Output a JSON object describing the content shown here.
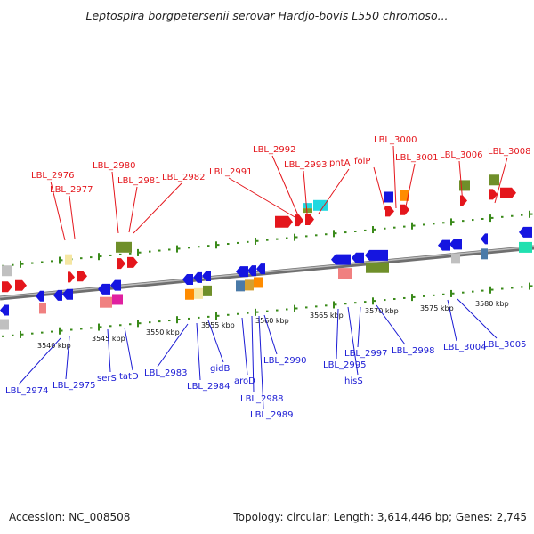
{
  "title": "Leptospira borgpetersenii serovar Hardjo-bovis L550 chromoso...",
  "accession": "Accession: NC_008508",
  "summary": "Topology: circular; Length: 3,614,446 bp; Genes: 2,745",
  "colors": {
    "forward_label": "#e4161c",
    "reverse_label": "#1b1bd4",
    "backbone": "#8a8a8a",
    "dots": "#3a8a1a"
  },
  "ticks": [
    {
      "label": "3540 kbp"
    },
    {
      "label": "3545 kbp"
    },
    {
      "label": "3550 kbp"
    },
    {
      "label": "3555 kbp"
    },
    {
      "label": "3560 kbp"
    },
    {
      "label": "3565 kbp"
    },
    {
      "label": "3570 kbp"
    },
    {
      "label": "3575 kbp"
    },
    {
      "label": "3580 kbp"
    }
  ],
  "forward_labels": [
    "LBL_2976",
    "LBL_2977",
    "LBL_2980",
    "LBL_2981",
    "LBL_2982",
    "LBL_2991",
    "LBL_2992",
    "LBL_2993",
    "pntA",
    "folP",
    "LBL_3000",
    "LBL_3001",
    "LBL_3006",
    "LBL_3008"
  ],
  "reverse_labels": [
    "LBL_2974",
    "LBL_2975",
    "serS",
    "tatD",
    "LBL_2983",
    "LBL_2984",
    "gidB",
    "aroD",
    "LBL_2988",
    "LBL_2989",
    "LBL_2990",
    "LBL_2995",
    "hisS",
    "LBL_2997",
    "LBL_2998",
    "LBL_3004",
    "LBL_3005"
  ]
}
